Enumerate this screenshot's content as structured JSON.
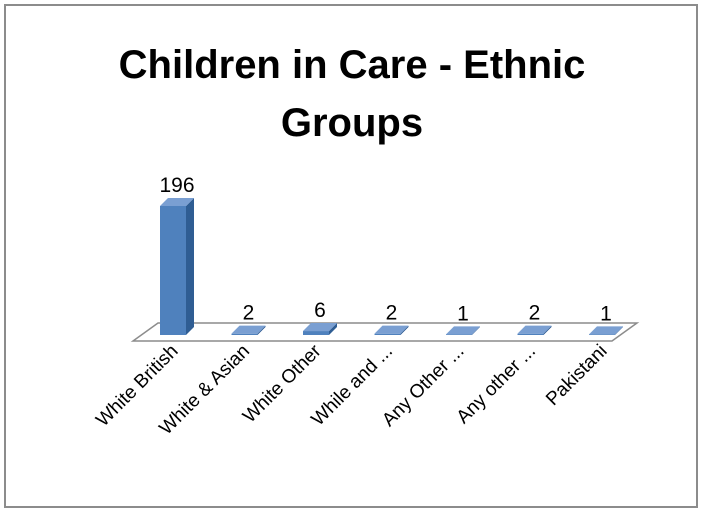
{
  "chart_data": {
    "type": "bar",
    "title_line1": "Children in Care - Ethnic",
    "title_line2": "Groups",
    "categories": [
      "White British",
      "White & Asian",
      "White Other",
      "While and ...",
      "Any Other ...",
      "Any other ...",
      "Pakistani"
    ],
    "values": [
      196,
      2,
      6,
      2,
      1,
      2,
      1
    ],
    "ylim": [
      0,
      196
    ],
    "xlabel": "",
    "ylabel": "",
    "grid": false,
    "legend": "none",
    "style": "3d-column",
    "colors": {
      "bar_front": "#4f81bd",
      "bar_side": "#2f5d93",
      "bar_top": "#7a9fd2",
      "floor_stroke": "#8c8c8c",
      "frame": "#8c8c8c"
    }
  }
}
